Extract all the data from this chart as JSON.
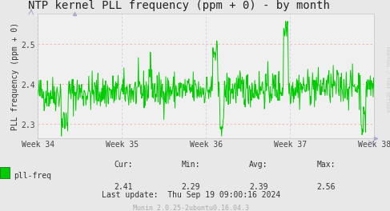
{
  "title": "NTP kernel PLL frequency (ppm + 0) - by month",
  "ylabel": "PLL frequency (ppm + 0)",
  "outer_bg": "#e8e8e8",
  "plot_bg": "#f0f0f0",
  "line_color": "#00cc00",
  "grid_h_color": "#ffaaaa",
  "grid_v_color": "#ccccdd",
  "arrow_color": "#aaaacc",
  "ylim": [
    2.265,
    2.575
  ],
  "yticks": [
    2.3,
    2.4,
    2.5
  ],
  "week_labels": [
    "Week 34",
    "Week 35",
    "Week 36",
    "Week 37",
    "Week 38"
  ],
  "cur": "2.41",
  "min_val": "2.29",
  "avg": "2.39",
  "max_val": "2.56",
  "legend_label": "pll-freq",
  "last_update": "Last update:  Thu Sep 19 09:00:16 2024",
  "munin_label": "Munin 2.0.25-2ubuntu0.16.04.3",
  "rrdtool_label": "RRDTOOL / TOBI OETIKER",
  "title_fontsize": 10,
  "axis_label_fontsize": 7,
  "tick_fontsize": 7,
  "footer_fontsize": 7,
  "munin_fontsize": 6,
  "seed": 42,
  "n_points": 700
}
